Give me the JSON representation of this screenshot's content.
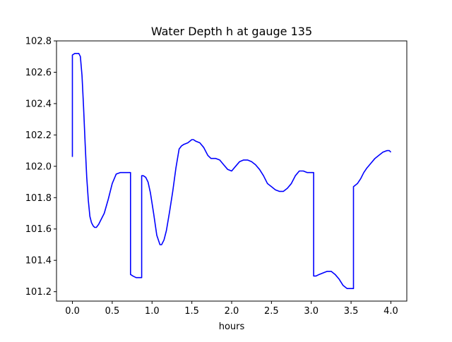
{
  "chart_data": {
    "type": "line",
    "title": "Water Depth h at gauge 135",
    "xlabel": "hours",
    "ylabel": "",
    "xlim": [
      -0.2,
      4.2
    ],
    "ylim": [
      101.14,
      102.8
    ],
    "grid": false,
    "colors": {
      "line": "#0000ff",
      "axes": "#000000",
      "background": "#ffffff"
    },
    "x_ticks": [
      {
        "value": 0.0,
        "label": "0.0"
      },
      {
        "value": 0.5,
        "label": "0.5"
      },
      {
        "value": 1.0,
        "label": "1.0"
      },
      {
        "value": 1.5,
        "label": "1.5"
      },
      {
        "value": 2.0,
        "label": "2.0"
      },
      {
        "value": 2.5,
        "label": "2.5"
      },
      {
        "value": 3.0,
        "label": "3.0"
      },
      {
        "value": 3.5,
        "label": "3.5"
      },
      {
        "value": 4.0,
        "label": "4.0"
      }
    ],
    "y_ticks": [
      {
        "value": 101.2,
        "label": "101.2"
      },
      {
        "value": 101.4,
        "label": "101.4"
      },
      {
        "value": 101.6,
        "label": "101.6"
      },
      {
        "value": 101.8,
        "label": "101.8"
      },
      {
        "value": 102.0,
        "label": "102.0"
      },
      {
        "value": 102.2,
        "label": "102.2"
      },
      {
        "value": 102.4,
        "label": "102.4"
      },
      {
        "value": 102.6,
        "label": "102.6"
      },
      {
        "value": 102.8,
        "label": "102.8"
      }
    ],
    "series": [
      {
        "x": [
          0.0,
          0.0,
          0.03,
          0.06,
          0.08,
          0.1,
          0.12,
          0.14,
          0.16,
          0.18,
          0.2,
          0.22,
          0.24,
          0.26,
          0.28,
          0.3,
          0.33,
          0.36,
          0.4,
          0.45,
          0.5,
          0.55,
          0.6,
          0.65,
          0.7,
          0.73,
          0.73,
          0.76,
          0.8,
          0.85,
          0.87,
          0.87,
          0.89,
          0.92,
          0.95,
          0.98,
          1.02,
          1.06,
          1.1,
          1.12,
          1.15,
          1.18,
          1.22,
          1.26,
          1.3,
          1.34,
          1.37,
          1.4,
          1.45,
          1.5,
          1.52,
          1.55,
          1.6,
          1.65,
          1.7,
          1.74,
          1.78,
          1.8,
          1.85,
          1.9,
          1.95,
          2.0,
          2.05,
          2.1,
          2.15,
          2.2,
          2.25,
          2.3,
          2.35,
          2.4,
          2.45,
          2.5,
          2.55,
          2.6,
          2.65,
          2.7,
          2.75,
          2.8,
          2.85,
          2.9,
          2.95,
          3.0,
          3.03,
          3.03,
          3.06,
          3.1,
          3.15,
          3.2,
          3.25,
          3.3,
          3.35,
          3.4,
          3.45,
          3.48,
          3.5,
          3.53,
          3.53,
          3.58,
          3.62,
          3.66,
          3.7,
          3.75,
          3.8,
          3.85,
          3.9,
          3.95,
          3.98,
          4.0
        ],
        "y": [
          102.06,
          102.71,
          102.72,
          102.72,
          102.72,
          102.7,
          102.58,
          102.38,
          102.14,
          101.93,
          101.78,
          101.68,
          101.64,
          101.62,
          101.61,
          101.61,
          101.63,
          101.66,
          101.7,
          101.79,
          101.89,
          101.95,
          101.96,
          101.96,
          101.96,
          101.96,
          101.31,
          101.3,
          101.29,
          101.29,
          101.29,
          101.94,
          101.94,
          101.93,
          101.9,
          101.83,
          101.7,
          101.56,
          101.5,
          101.5,
          101.53,
          101.59,
          101.71,
          101.84,
          101.99,
          102.11,
          102.13,
          102.14,
          102.15,
          102.17,
          102.17,
          102.16,
          102.15,
          102.12,
          102.07,
          102.05,
          102.05,
          102.05,
          102.04,
          102.01,
          101.98,
          101.97,
          102.0,
          102.03,
          102.04,
          102.04,
          102.03,
          102.01,
          101.98,
          101.94,
          101.89,
          101.87,
          101.85,
          101.84,
          101.84,
          101.86,
          101.89,
          101.94,
          101.97,
          101.97,
          101.96,
          101.96,
          101.96,
          101.3,
          101.3,
          101.31,
          101.32,
          101.33,
          101.33,
          101.31,
          101.28,
          101.24,
          101.22,
          101.22,
          101.22,
          101.22,
          101.87,
          101.89,
          101.92,
          101.96,
          101.99,
          102.02,
          102.05,
          102.07,
          102.09,
          102.1,
          102.1,
          102.09
        ]
      }
    ]
  }
}
